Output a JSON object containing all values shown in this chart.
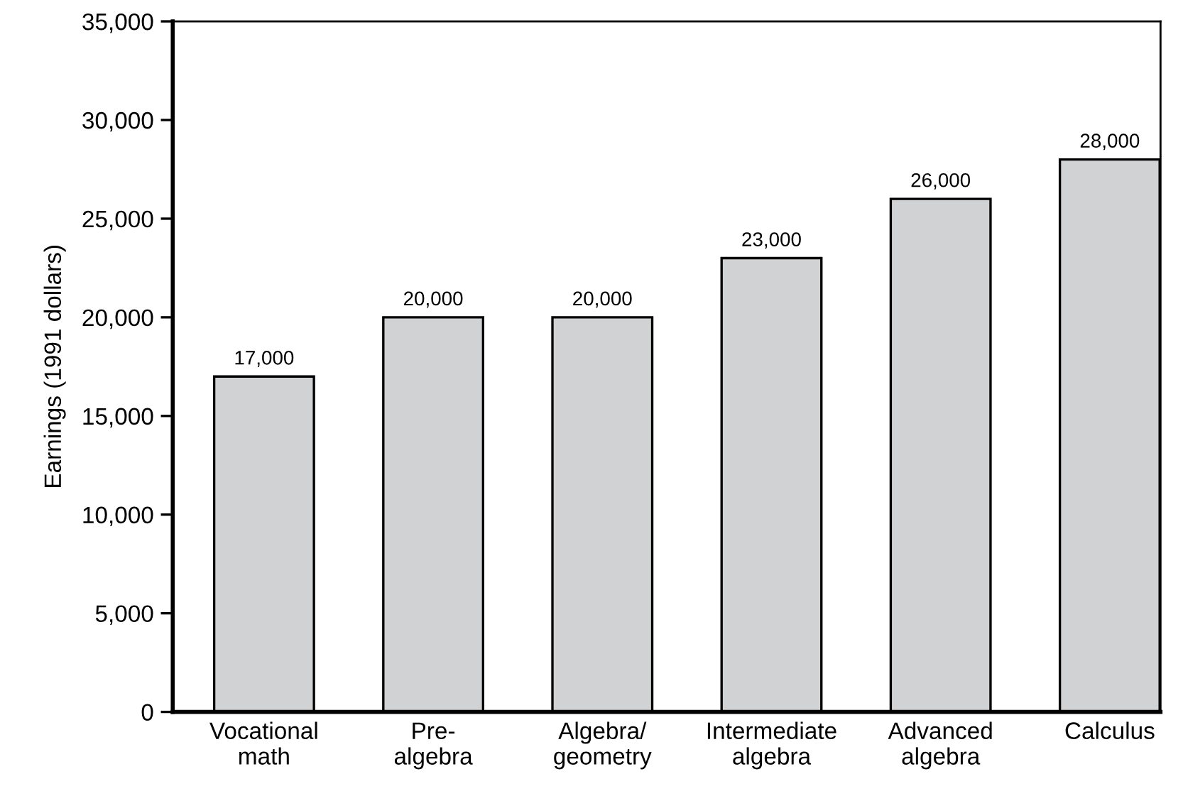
{
  "chart_data": {
    "type": "bar",
    "ylabel": "Earnings (1991 dollars)",
    "categories": [
      "Vocational\nmath",
      "Pre-\nalgebra",
      "Algebra/\ngeometry",
      "Intermediate\nalgebra",
      "Advanced\nalgebra",
      "Calculus"
    ],
    "values": [
      17000,
      20000,
      20000,
      23000,
      26000,
      28000
    ],
    "value_labels": [
      "17,000",
      "20,000",
      "20,000",
      "23,000",
      "26,000",
      "28,000"
    ],
    "color": "#d1d2d4",
    "ylim": [
      0,
      35000
    ],
    "yticks": [
      {
        "value": 0,
        "label": "0"
      },
      {
        "value": 5000,
        "label": "5,000"
      },
      {
        "value": 10000,
        "label": "10,000"
      },
      {
        "value": 15000,
        "label": "15,000"
      },
      {
        "value": 20000,
        "label": "20,000"
      },
      {
        "value": 25000,
        "label": "25,000"
      },
      {
        "value": 30000,
        "label": "30,000"
      },
      {
        "value": 35000,
        "label": "35,000"
      }
    ],
    "grid": false,
    "legend": false
  }
}
